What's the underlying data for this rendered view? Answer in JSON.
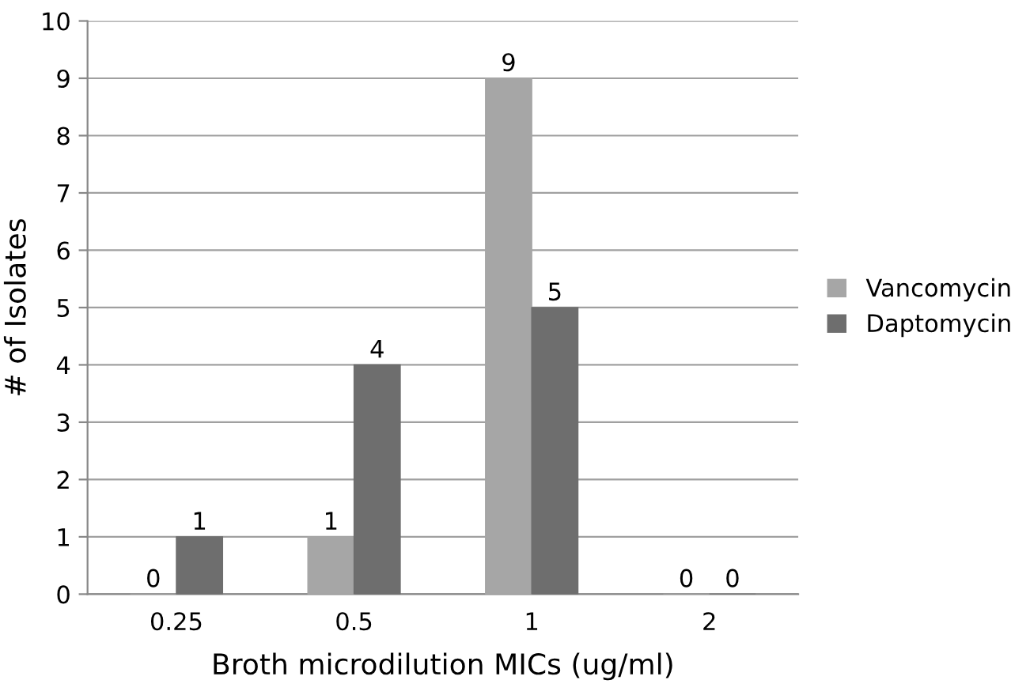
{
  "chart_data": {
    "type": "bar",
    "xlabel": "Broth microdilution MICs (ug/ml)",
    "ylabel": "# of Isolates",
    "categories": [
      "0.25",
      "0.5",
      "1",
      "2"
    ],
    "series": [
      {
        "name": "Vancomycin",
        "color": "#a6a6a6",
        "values": [
          0,
          1,
          9,
          0
        ]
      },
      {
        "name": "Daptomycin",
        "color": "#6e6e6e",
        "values": [
          1,
          4,
          5,
          0
        ]
      }
    ],
    "ylim": [
      0,
      10
    ],
    "yticks": [
      0,
      1,
      2,
      3,
      4,
      5,
      6,
      7,
      8,
      9,
      10
    ],
    "grid": "y",
    "legend": "right",
    "data_labels": true
  }
}
